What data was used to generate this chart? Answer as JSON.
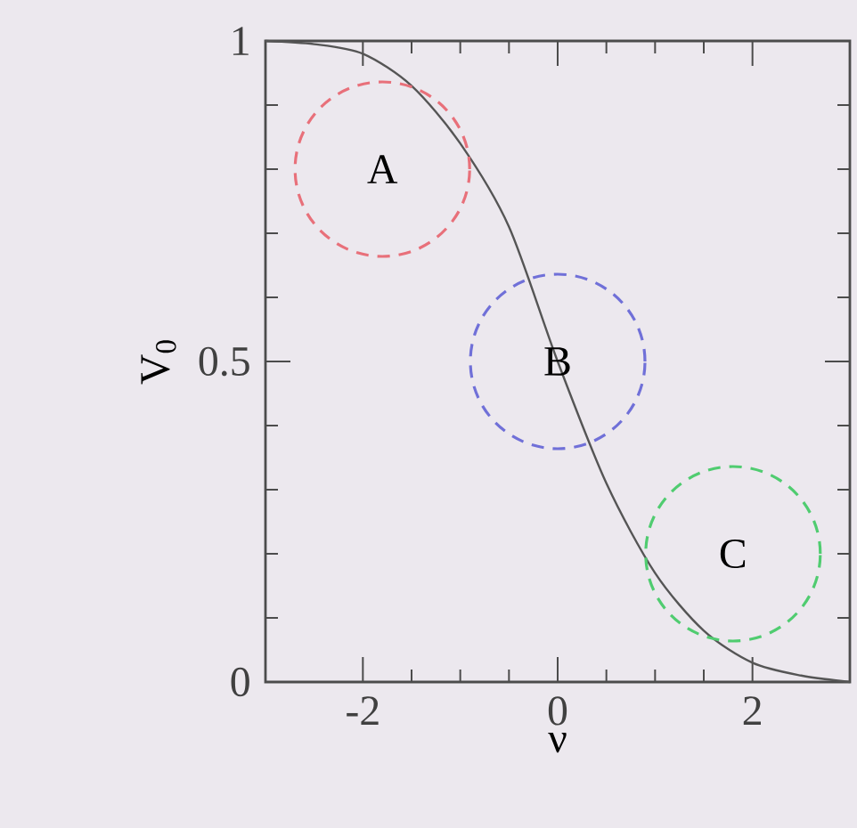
{
  "chart_data": {
    "type": "line",
    "xlabel": "ν",
    "ylabel": "V$_{0}$",
    "xlim": [
      -3,
      3
    ],
    "ylim": [
      0,
      1
    ],
    "xticks": [
      -2,
      0,
      2
    ],
    "yticks": [
      0,
      0.5,
      1
    ],
    "grid": false,
    "series": [
      {
        "color": "#555555",
        "x": [
          -3,
          -2.5,
          -2,
          -1.5,
          -1,
          -0.5,
          0,
          0.5,
          1,
          1.5,
          2,
          2.5,
          3
        ],
        "values": [
          1.0,
          0.995,
          0.98,
          0.93,
          0.84,
          0.71,
          0.5,
          0.31,
          0.17,
          0.08,
          0.03,
          0.01,
          0.0
        ]
      },
      {
        "type": "scatter",
        "color": "#e8707a",
        "marker": "circle",
        "x": [
          -1.8
        ],
        "values": [
          0.8
        ]
      },
      {
        "type": "scatter",
        "color": "#7070d8",
        "marker": "circle",
        "x": [
          0
        ],
        "values": [
          0.5
        ]
      },
      {
        "type": "scatter",
        "color": "#50cc70",
        "marker": "circle",
        "x": [
          1.8
        ],
        "values": [
          0.2
        ]
      }
    ],
    "annotations": [
      {
        "text": "A",
        "x": -1.8,
        "y": 0.8
      },
      {
        "text": "B",
        "x": 0,
        "y": 0.5
      },
      {
        "text": "C",
        "x": 1.8,
        "y": 0.2
      }
    ]
  }
}
